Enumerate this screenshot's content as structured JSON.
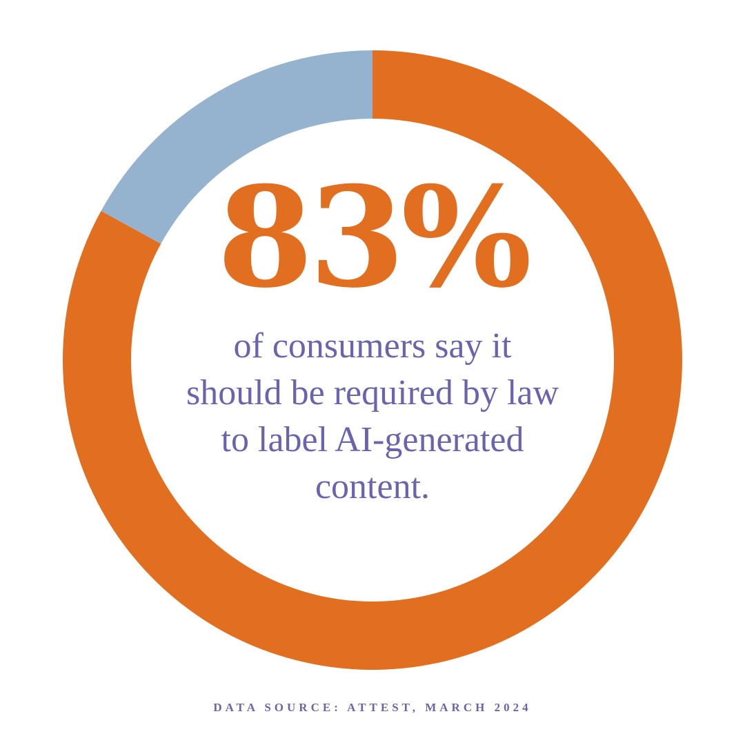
{
  "chart_data": {
    "type": "pie",
    "donut": true,
    "categories": [
      null,
      null
    ],
    "values": [
      83,
      17
    ],
    "value_labels": [
      "83%",
      null
    ],
    "colors": [
      "#e26f1f",
      "#95b3cf"
    ],
    "caption": "of consumers say it should be required by law to label AI-generated content.",
    "source": "DATA SOURCE: ATTEST, MARCH 2024"
  }
}
